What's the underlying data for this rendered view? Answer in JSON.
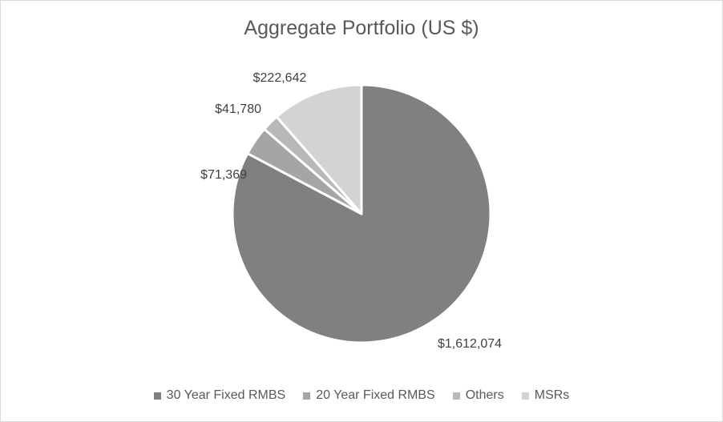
{
  "chart_data": {
    "type": "pie",
    "title": "Aggregate Portfolio (US $)",
    "categories": [
      "30 Year Fixed RMBS",
      "20 Year Fixed RMBS",
      "Others",
      "MSRs"
    ],
    "values": [
      1612074,
      71369,
      41780,
      222642
    ],
    "value_labels": [
      "$1,612,074",
      "$71,369",
      "$41,780",
      "$222,642"
    ],
    "colors": [
      "#808080",
      "#a5a5a5",
      "#b8b8b8",
      "#d3d3d3"
    ],
    "start_angle_deg": 0,
    "direction": "clockwise",
    "legend_position": "bottom"
  }
}
